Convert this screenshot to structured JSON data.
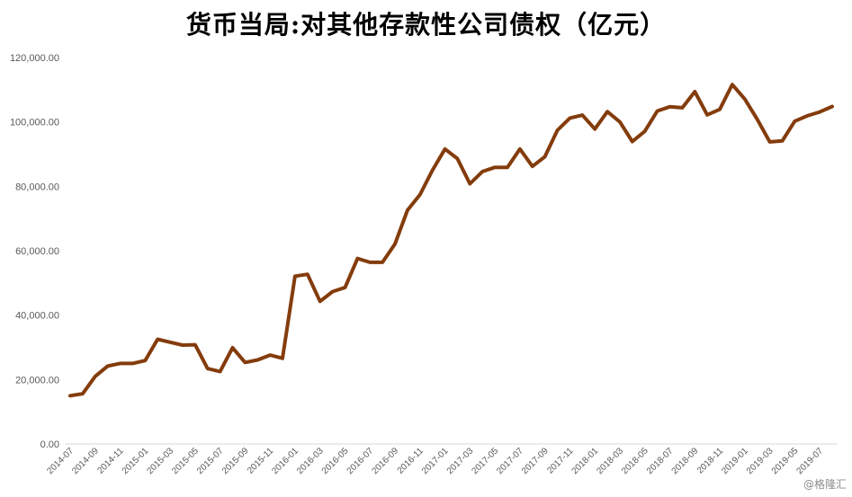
{
  "chart_data": {
    "type": "line",
    "title": "货币当局:对其他存款性公司债权（亿元）",
    "xlabel": "",
    "ylabel": "",
    "ylim": [
      0,
      120000
    ],
    "yticks": [
      "0.00",
      "20,000.00",
      "40,000.00",
      "60,000.00",
      "80,000.00",
      "100,000.00",
      "120,000.00"
    ],
    "x": [
      "2014-07",
      "2014-08",
      "2014-09",
      "2014-10",
      "2014-11",
      "2014-12",
      "2015-01",
      "2015-02",
      "2015-03",
      "2015-04",
      "2015-05",
      "2015-06",
      "2015-07",
      "2015-08",
      "2015-09",
      "2015-10",
      "2015-11",
      "2015-12",
      "2016-01",
      "2016-02",
      "2016-03",
      "2016-04",
      "2016-05",
      "2016-06",
      "2016-07",
      "2016-08",
      "2016-09",
      "2016-10",
      "2016-11",
      "2016-12",
      "2017-01",
      "2017-02",
      "2017-03",
      "2017-04",
      "2017-05",
      "2017-06",
      "2017-07",
      "2017-08",
      "2017-09",
      "2017-10",
      "2017-11",
      "2017-12",
      "2018-01",
      "2018-02",
      "2018-03",
      "2018-04",
      "2018-05",
      "2018-06",
      "2018-07",
      "2018-08",
      "2018-09",
      "2018-10",
      "2018-11",
      "2018-12",
      "2019-01",
      "2019-02",
      "2019-03",
      "2019-04",
      "2019-05",
      "2019-06",
      "2019-07",
      "2019-08"
    ],
    "xtick_labels": [
      "2014-07",
      "2014-09",
      "2014-11",
      "2015-01",
      "2015-03",
      "2015-05",
      "2015-07",
      "2015-09",
      "2015-11",
      "2016-01",
      "2016-03",
      "2016-05",
      "2016-07",
      "2016-09",
      "2016-11",
      "2017-01",
      "2017-03",
      "2017-05",
      "2017-07",
      "2017-09",
      "2017-11",
      "2018-01",
      "2018-03",
      "2018-05",
      "2018-07",
      "2018-09",
      "2018-11",
      "2019-01",
      "2019-03",
      "2019-05",
      "2019-07"
    ],
    "series": [
      {
        "values": [
          15000,
          15600,
          21000,
          24200,
          25000,
          25000,
          25900,
          32500,
          31600,
          30700,
          30800,
          23400,
          22500,
          29900,
          25300,
          26100,
          27600,
          26600,
          52100,
          52700,
          44300,
          47300,
          48600,
          57600,
          56400,
          56400,
          62100,
          72600,
          77400,
          85000,
          91600,
          88600,
          80800,
          84600,
          85900,
          85900,
          91600,
          86200,
          89200,
          97400,
          101200,
          102100,
          97800,
          103200,
          100000,
          93900,
          97100,
          103400,
          104700,
          104400,
          109400,
          102200,
          103900,
          111600,
          107100,
          100800,
          93800,
          94100,
          100200,
          101900,
          103100,
          104800
        ]
      }
    ],
    "line_color": "#843c0c",
    "grid": false,
    "legend": "none"
  },
  "watermark": "@格隆汇"
}
